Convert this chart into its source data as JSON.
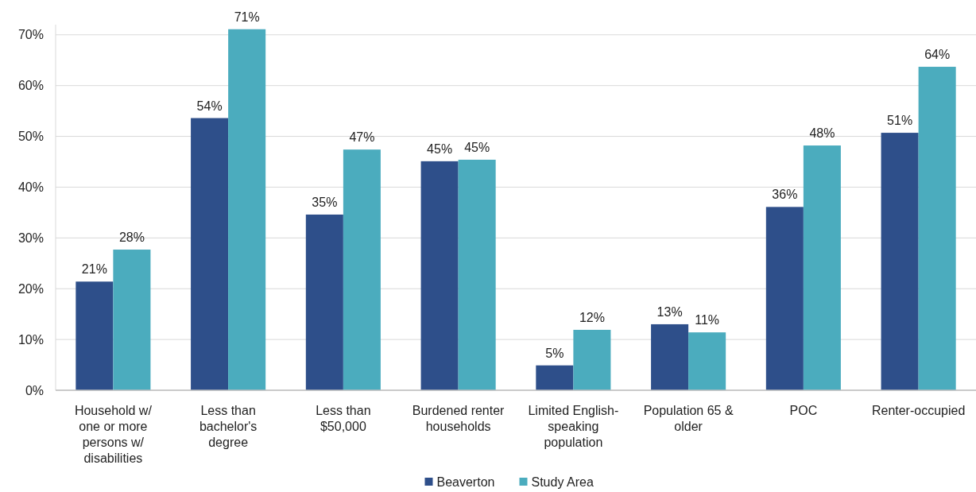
{
  "chart_data": {
    "type": "bar",
    "categories": [
      "Household w/ one or more persons w/ disabilities",
      "Less than bachelor's degree",
      "Less than $50,000",
      "Burdened renter households",
      "Limited English-speaking population",
      "Population 65 & older",
      "POC",
      "Renter-occupied"
    ],
    "series": [
      {
        "name": "Beaverton",
        "color": "#2e4f8a",
        "values": [
          21.4,
          53.6,
          34.6,
          45.1,
          4.9,
          13.0,
          36.1,
          50.7
        ],
        "value_labels": [
          "21%",
          "54%",
          "35%",
          "45%",
          "5%",
          "13%",
          "36%",
          "51%"
        ]
      },
      {
        "name": "Study Area",
        "color": "#4bacbe",
        "values": [
          27.7,
          71.1,
          47.4,
          45.4,
          11.9,
          11.4,
          48.2,
          63.7
        ],
        "value_labels": [
          "28%",
          "71%",
          "47%",
          "45%",
          "12%",
          "11%",
          "48%",
          "64%"
        ]
      }
    ],
    "ylim": [
      0,
      72
    ],
    "yticks": [
      {
        "value": 0,
        "label": "0%"
      },
      {
        "value": 10,
        "label": "10%"
      },
      {
        "value": 20,
        "label": "20%"
      },
      {
        "value": 30,
        "label": "30%"
      },
      {
        "value": 40,
        "label": "40%"
      },
      {
        "value": 50,
        "label": "50%"
      },
      {
        "value": 60,
        "label": "60%"
      },
      {
        "value": 70,
        "label": "70%"
      }
    ],
    "grid": "y",
    "legend": "bottom"
  }
}
